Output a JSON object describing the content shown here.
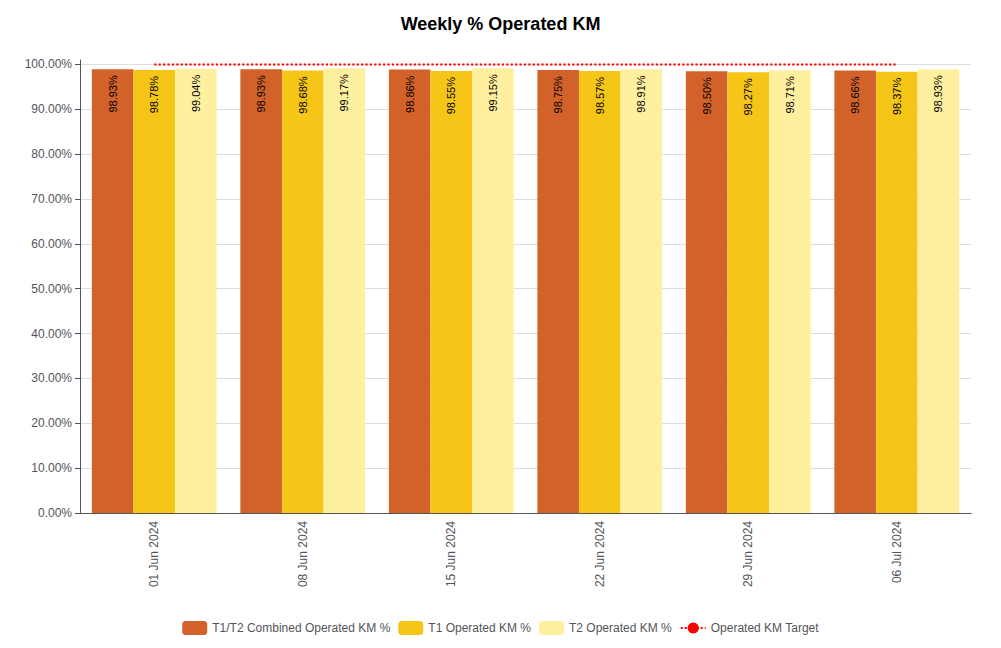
{
  "chart_data": {
    "type": "bar",
    "title": "Weekly % Operated KM",
    "categories": [
      "01 Jun 2024",
      "08 Jun 2024",
      "15 Jun 2024",
      "22 Jun 2024",
      "29 Jun 2024",
      "06 Jul 2024"
    ],
    "series": [
      {
        "name": "T1/T2 Combined Operated KM %",
        "color": "#D2622A",
        "values": [
          98.93,
          98.93,
          98.86,
          98.75,
          98.5,
          98.66
        ],
        "value_labels": [
          "98.93%",
          "98.93%",
          "98.86%",
          "98.75%",
          "98.50%",
          "98.66%"
        ]
      },
      {
        "name": "T1 Operated KM %",
        "color": "#F5C518",
        "values": [
          98.78,
          98.68,
          98.55,
          98.57,
          98.27,
          98.37
        ],
        "value_labels": [
          "98.78%",
          "98.68%",
          "98.55%",
          "98.57%",
          "98.27%",
          "98.37%"
        ]
      },
      {
        "name": "T2 Operated KM %",
        "color": "#FFF0A0",
        "values": [
          99.04,
          99.17,
          99.15,
          98.91,
          98.71,
          98.93
        ],
        "value_labels": [
          "99.04%",
          "99.17%",
          "99.15%",
          "98.91%",
          "98.71%",
          "98.93%"
        ]
      },
      {
        "name": "Operated KM Target",
        "type": "line",
        "color": "#FF0000",
        "line_style": "dotted",
        "values": [
          100.0,
          100.0,
          100.0,
          100.0,
          100.0,
          100.0
        ]
      }
    ],
    "ylim": [
      0,
      101.0
    ],
    "yticks": [
      {
        "value": 0,
        "label": "0.00%"
      },
      {
        "value": 10,
        "label": "10.00%"
      },
      {
        "value": 20,
        "label": "20.00%"
      },
      {
        "value": 30,
        "label": "30.00%"
      },
      {
        "value": 40,
        "label": "40.00%"
      },
      {
        "value": 50,
        "label": "50.00%"
      },
      {
        "value": 60,
        "label": "60.00%"
      },
      {
        "value": 70,
        "label": "70.00%"
      },
      {
        "value": 80,
        "label": "80.00%"
      },
      {
        "value": 90,
        "label": "90.00%"
      },
      {
        "value": 100,
        "label": "100.00%"
      }
    ],
    "grid": true,
    "data_labels": true,
    "legend": "bottom"
  }
}
